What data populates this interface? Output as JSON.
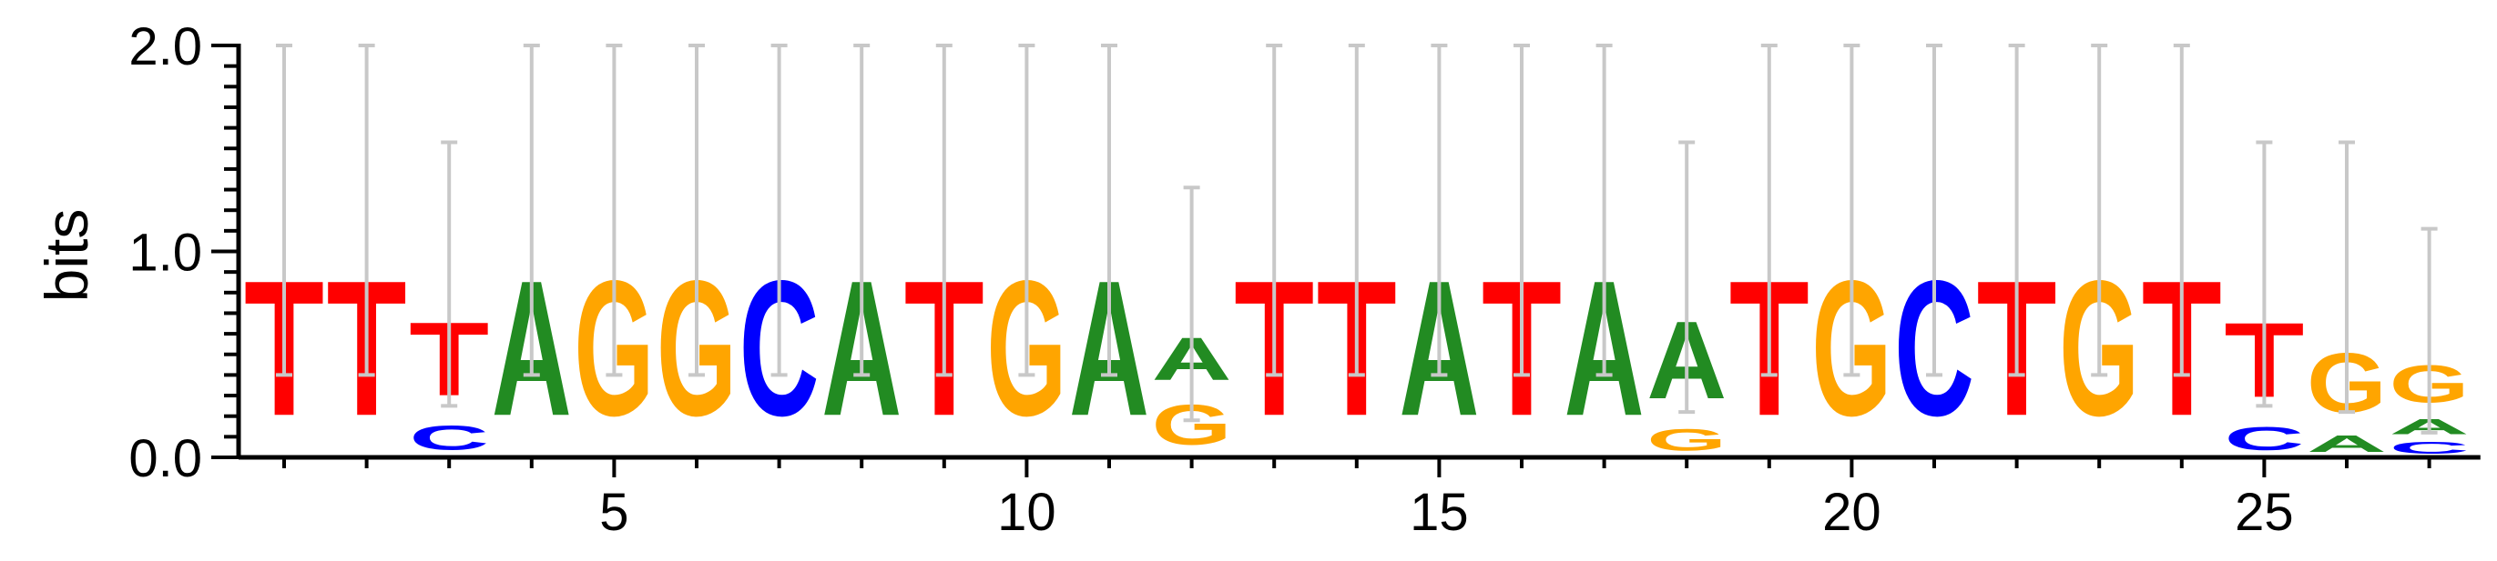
{
  "chart_data": {
    "type": "sequence-logo",
    "ylabel": "bits",
    "xlabel": "",
    "ylim": [
      0,
      2.0
    ],
    "y_ticks": [
      "0.0",
      "1.0",
      "2.0"
    ],
    "x_ticks": [
      "5",
      "10",
      "15",
      "20",
      "25"
    ],
    "x_tick_positions": [
      5,
      10,
      15,
      20,
      25
    ],
    "positions": [
      {
        "pos": 1,
        "letters": [
          {
            "base": "T",
            "bits": 1.05
          }
        ]
      },
      {
        "pos": 2,
        "letters": [
          {
            "base": "T",
            "bits": 1.05
          }
        ]
      },
      {
        "pos": 3,
        "letters": [
          {
            "base": "C",
            "bits": 0.19
          },
          {
            "base": "T",
            "bits": 0.57
          }
        ]
      },
      {
        "pos": 4,
        "letters": [
          {
            "base": "A",
            "bits": 1.05
          }
        ]
      },
      {
        "pos": 5,
        "letters": [
          {
            "base": "G",
            "bits": 1.05
          }
        ]
      },
      {
        "pos": 6,
        "letters": [
          {
            "base": "G",
            "bits": 1.05
          }
        ]
      },
      {
        "pos": 7,
        "letters": [
          {
            "base": "C",
            "bits": 1.05
          }
        ]
      },
      {
        "pos": 8,
        "letters": [
          {
            "base": "A",
            "bits": 1.05
          }
        ]
      },
      {
        "pos": 9,
        "letters": [
          {
            "base": "T",
            "bits": 1.05
          }
        ]
      },
      {
        "pos": 10,
        "letters": [
          {
            "base": "G",
            "bits": 1.05
          }
        ]
      },
      {
        "pos": 11,
        "letters": [
          {
            "base": "A",
            "bits": 1.05
          }
        ]
      },
      {
        "pos": 12,
        "letters": [
          {
            "base": "G",
            "bits": 0.31
          },
          {
            "base": "A",
            "bits": 0.33
          }
        ]
      },
      {
        "pos": 13,
        "letters": [
          {
            "base": "T",
            "bits": 1.05
          }
        ]
      },
      {
        "pos": 14,
        "letters": [
          {
            "base": "T",
            "bits": 1.05
          }
        ]
      },
      {
        "pos": 15,
        "letters": [
          {
            "base": "A",
            "bits": 1.05
          }
        ]
      },
      {
        "pos": 16,
        "letters": [
          {
            "base": "T",
            "bits": 1.05
          }
        ]
      },
      {
        "pos": 17,
        "letters": [
          {
            "base": "A",
            "bits": 1.05
          }
        ]
      },
      {
        "pos": 18,
        "letters": [
          {
            "base": "G",
            "bits": 0.17
          },
          {
            "base": "A",
            "bits": 0.6
          }
        ]
      },
      {
        "pos": 19,
        "letters": [
          {
            "base": "T",
            "bits": 1.05
          }
        ]
      },
      {
        "pos": 20,
        "letters": [
          {
            "base": "G",
            "bits": 1.05
          }
        ]
      },
      {
        "pos": 21,
        "letters": [
          {
            "base": "C",
            "bits": 1.05
          }
        ]
      },
      {
        "pos": 22,
        "letters": [
          {
            "base": "T",
            "bits": 1.05
          }
        ]
      },
      {
        "pos": 23,
        "letters": [
          {
            "base": "G",
            "bits": 1.05
          }
        ]
      },
      {
        "pos": 24,
        "letters": [
          {
            "base": "T",
            "bits": 1.05
          }
        ]
      },
      {
        "pos": 25,
        "letters": [
          {
            "base": "C",
            "bits": 0.18
          },
          {
            "base": "T",
            "bits": 0.58
          }
        ]
      },
      {
        "pos": 26,
        "letters": [
          {
            "base": "A",
            "bits": 0.13
          },
          {
            "base": "G",
            "bits": 0.46
          }
        ]
      },
      {
        "pos": 27,
        "letters": [
          {
            "base": "C",
            "bits": 0.09
          },
          {
            "base": "A",
            "bits": 0.12
          },
          {
            "base": "G",
            "bits": 0.29
          }
        ]
      }
    ],
    "error_bars": [
      {
        "pos": 1,
        "low": 0.4,
        "high": 2.0
      },
      {
        "pos": 2,
        "low": 0.4,
        "high": 2.0
      },
      {
        "pos": 3,
        "low": 0.25,
        "high": 1.53
      },
      {
        "pos": 4,
        "low": 0.4,
        "high": 2.0
      },
      {
        "pos": 5,
        "low": 0.4,
        "high": 2.0
      },
      {
        "pos": 6,
        "low": 0.4,
        "high": 2.0
      },
      {
        "pos": 7,
        "low": 0.4,
        "high": 2.0
      },
      {
        "pos": 8,
        "low": 0.4,
        "high": 2.0
      },
      {
        "pos": 9,
        "low": 0.4,
        "high": 2.0
      },
      {
        "pos": 10,
        "low": 0.4,
        "high": 2.0
      },
      {
        "pos": 11,
        "low": 0.4,
        "high": 2.0
      },
      {
        "pos": 12,
        "low": 0.18,
        "high": 1.31
      },
      {
        "pos": 13,
        "low": 0.4,
        "high": 2.0
      },
      {
        "pos": 14,
        "low": 0.4,
        "high": 2.0
      },
      {
        "pos": 15,
        "low": 0.4,
        "high": 2.0
      },
      {
        "pos": 16,
        "low": 0.4,
        "high": 2.0
      },
      {
        "pos": 17,
        "low": 0.4,
        "high": 2.0
      },
      {
        "pos": 18,
        "low": 0.22,
        "high": 1.53
      },
      {
        "pos": 19,
        "low": 0.4,
        "high": 2.0
      },
      {
        "pos": 20,
        "low": 0.4,
        "high": 2.0
      },
      {
        "pos": 21,
        "low": 0.4,
        "high": 2.0
      },
      {
        "pos": 22,
        "low": 0.4,
        "high": 2.0
      },
      {
        "pos": 23,
        "low": 0.4,
        "high": 2.0
      },
      {
        "pos": 24,
        "low": 0.4,
        "high": 2.0
      },
      {
        "pos": 25,
        "low": 0.25,
        "high": 1.53
      },
      {
        "pos": 26,
        "low": 0.22,
        "high": 1.53
      },
      {
        "pos": 27,
        "low": 0.12,
        "high": 1.11
      }
    ],
    "base_colors": {
      "A": "#228b22",
      "C": "#0000ff",
      "G": "#ffa500",
      "T": "#ff0000"
    },
    "error_bar_color": "#c8c8c8",
    "axis_color": "#000000"
  }
}
